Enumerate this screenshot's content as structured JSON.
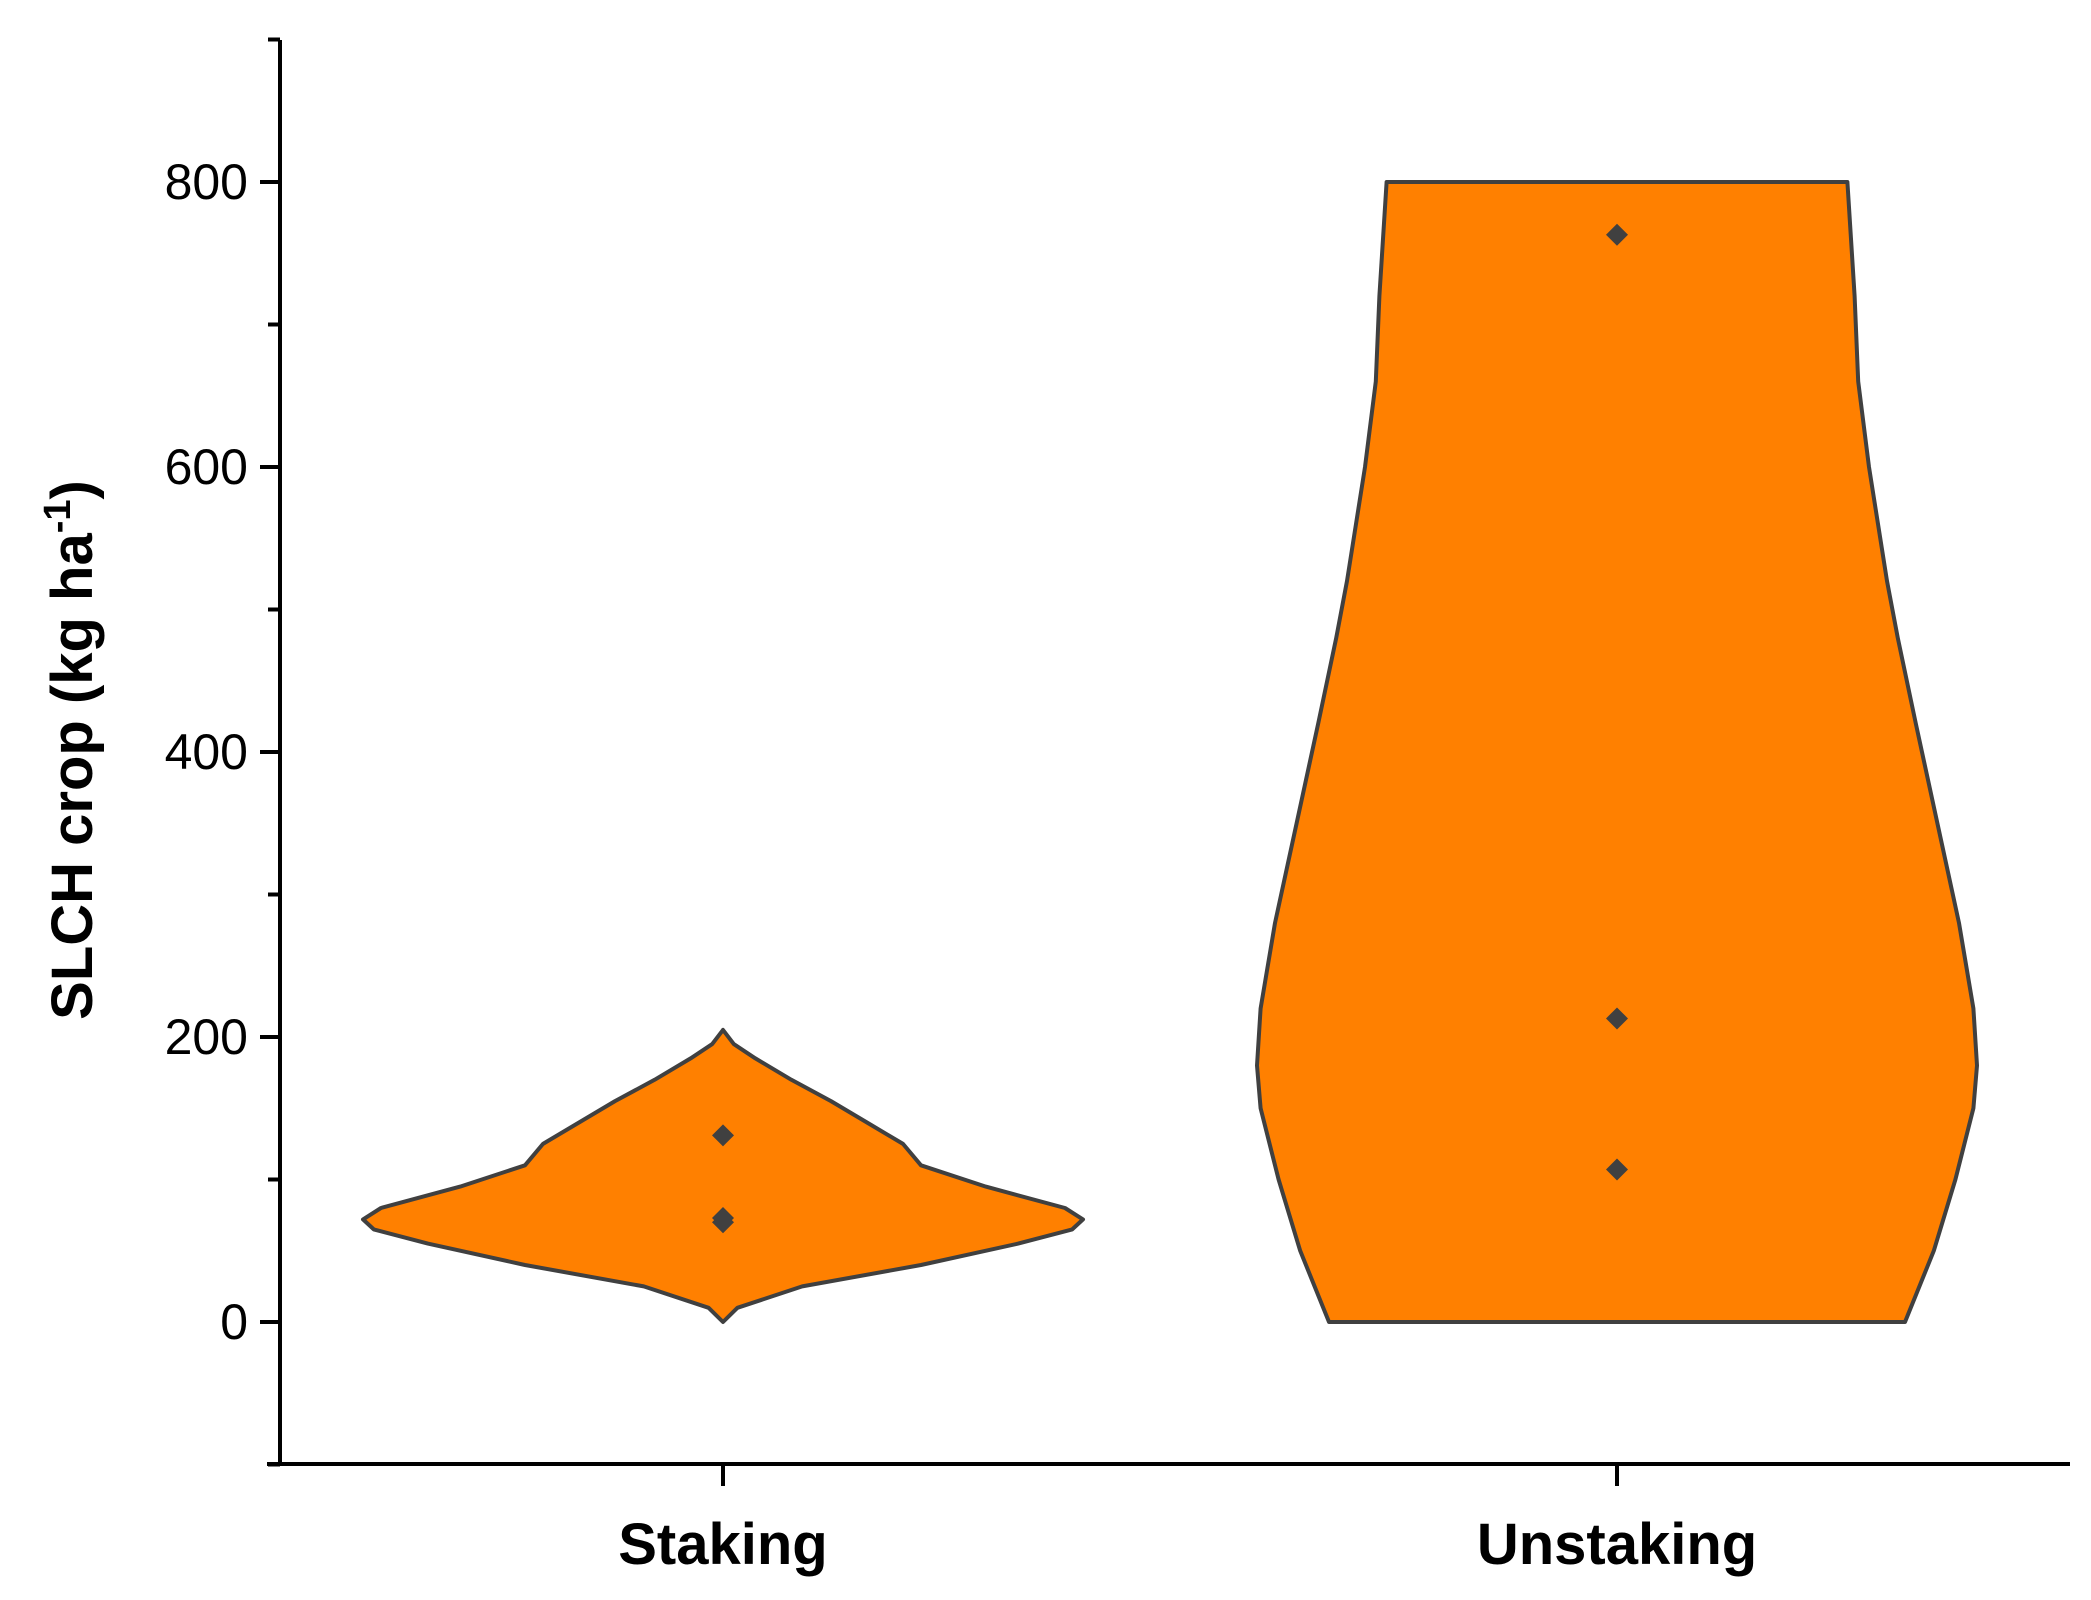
{
  "chart_data": {
    "type": "violin",
    "categories": [
      "Staking",
      "Unstaking"
    ],
    "ylabel": {
      "main": "SLCH crop (kg ha",
      "superscript": "-1",
      "tail": ")"
    },
    "ylim": [
      -100,
      900
    ],
    "yticks": [
      0,
      200,
      400,
      600,
      800
    ],
    "grid": false,
    "legend": "none",
    "colors": {
      "fill": "#FF8000",
      "stroke": "#404040",
      "points": "#404040",
      "axis": "#000000"
    },
    "series": [
      {
        "category": "Staking",
        "points": [
          131,
          73,
          70
        ],
        "density": [
          [
            0,
            0
          ],
          [
            10,
            0.04
          ],
          [
            25,
            0.22
          ],
          [
            40,
            0.55
          ],
          [
            55,
            0.82
          ],
          [
            65,
            0.97
          ],
          [
            72,
            1.0
          ],
          [
            80,
            0.95
          ],
          [
            95,
            0.73
          ],
          [
            110,
            0.55
          ],
          [
            125,
            0.5
          ],
          [
            140,
            0.4
          ],
          [
            155,
            0.3
          ],
          [
            170,
            0.19
          ],
          [
            185,
            0.09
          ],
          [
            195,
            0.03
          ],
          [
            205,
            0.0
          ]
        ]
      },
      {
        "category": "Unstaking",
        "points": [
          763,
          213,
          107
        ],
        "density": [
          [
            0,
            0.8
          ],
          [
            50,
            0.88
          ],
          [
            100,
            0.94
          ],
          [
            150,
            0.99
          ],
          [
            180,
            1.0
          ],
          [
            220,
            0.99
          ],
          [
            280,
            0.95
          ],
          [
            350,
            0.89
          ],
          [
            420,
            0.83
          ],
          [
            480,
            0.78
          ],
          [
            520,
            0.75
          ],
          [
            600,
            0.7
          ],
          [
            660,
            0.67
          ],
          [
            720,
            0.66
          ],
          [
            800,
            0.64
          ]
        ]
      }
    ]
  }
}
